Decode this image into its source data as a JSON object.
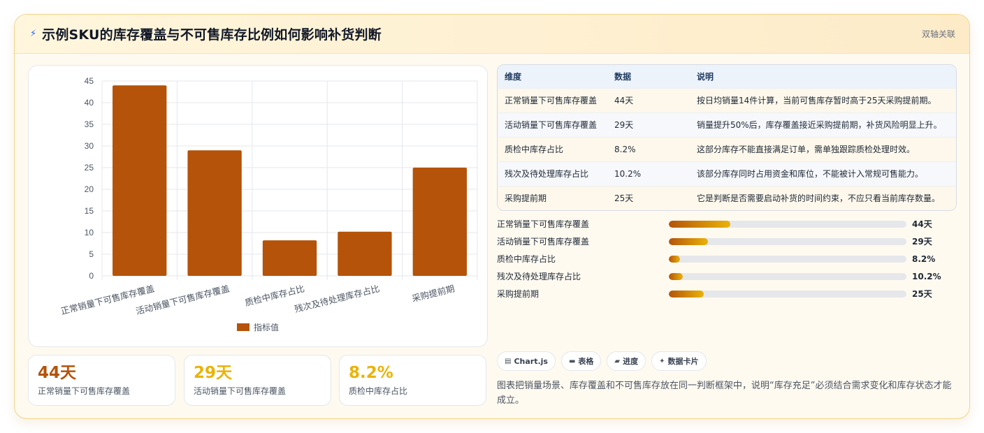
{
  "header": {
    "icon": "lightning-icon",
    "title": "示例SKU的库存覆盖与不可售库存比例如何影响补货判断",
    "tag": "双轴关联"
  },
  "chart_data": {
    "type": "bar",
    "categories": [
      "正常销量下可售库存覆盖",
      "活动销量下可售库存覆盖",
      "质检中库存占比",
      "残次及待处理库存占比",
      "采购提前期"
    ],
    "series": [
      {
        "name": "指标值",
        "values": [
          44,
          29,
          8.2,
          10.2,
          25
        ],
        "color": "#b45309"
      }
    ],
    "yticks": [
      0,
      5,
      10,
      15,
      20,
      25,
      30,
      35,
      40,
      45
    ],
    "ylim": [
      0,
      45
    ],
    "grid": true,
    "legend_position": "bottom"
  },
  "kpis": [
    {
      "value": "44天",
      "label": "正常销量下可售库存覆盖",
      "color": "#b45309"
    },
    {
      "value": "29天",
      "label": "活动销量下可售库存覆盖",
      "color": "#eab308"
    },
    {
      "value": "8.2%",
      "label": "质检中库存占比",
      "color": "#eab308"
    }
  ],
  "table": {
    "headers": [
      "维度",
      "数据",
      "说明"
    ],
    "rows": [
      [
        "正常销量下可售库存覆盖",
        "44天",
        "按日均销量14件计算，当前可售库存暂时高于25天采购提前期。"
      ],
      [
        "活动销量下可售库存覆盖",
        "29天",
        "销量提升50%后，库存覆盖接近采购提前期，补货风险明显上升。"
      ],
      [
        "质检中库存占比",
        "8.2%",
        "这部分库存不能直接满足订单，需单独跟踪质检处理时效。"
      ],
      [
        "残次及待处理库存占比",
        "10.2%",
        "该部分库存同时占用资金和库位，不能被计入常规可售能力。"
      ],
      [
        "采购提前期",
        "25天",
        "它是判断是否需要启动补货的时间约束，不应只看当前库存数量。"
      ]
    ]
  },
  "progress": [
    {
      "label": "正常销量下可售库存覆盖",
      "value_text": "44天",
      "fraction": 0.26
    },
    {
      "label": "活动销量下可售库存覆盖",
      "value_text": "29天",
      "fraction": 0.165
    },
    {
      "label": "质检中库存占比",
      "value_text": "8.2%",
      "fraction": 0.047
    },
    {
      "label": "残次及待处理库存占比",
      "value_text": "10.2%",
      "fraction": 0.058
    },
    {
      "label": "采购提前期",
      "value_text": "25天",
      "fraction": 0.147
    }
  ],
  "tags": [
    {
      "icon": "chart-icon",
      "glyph": "▤",
      "label": "Chart.js"
    },
    {
      "icon": "table-icon",
      "glyph": "▬",
      "label": "表格"
    },
    {
      "icon": "folder-icon",
      "glyph": "▰",
      "label": "进度"
    },
    {
      "icon": "sparkle-icon",
      "glyph": "✦",
      "label": "数据卡片"
    }
  ],
  "note": "图表把销量场景、库存覆盖和不可售库存放在同一判断框架中，说明“库存充足”必须结合需求变化和库存状态才能成立。"
}
